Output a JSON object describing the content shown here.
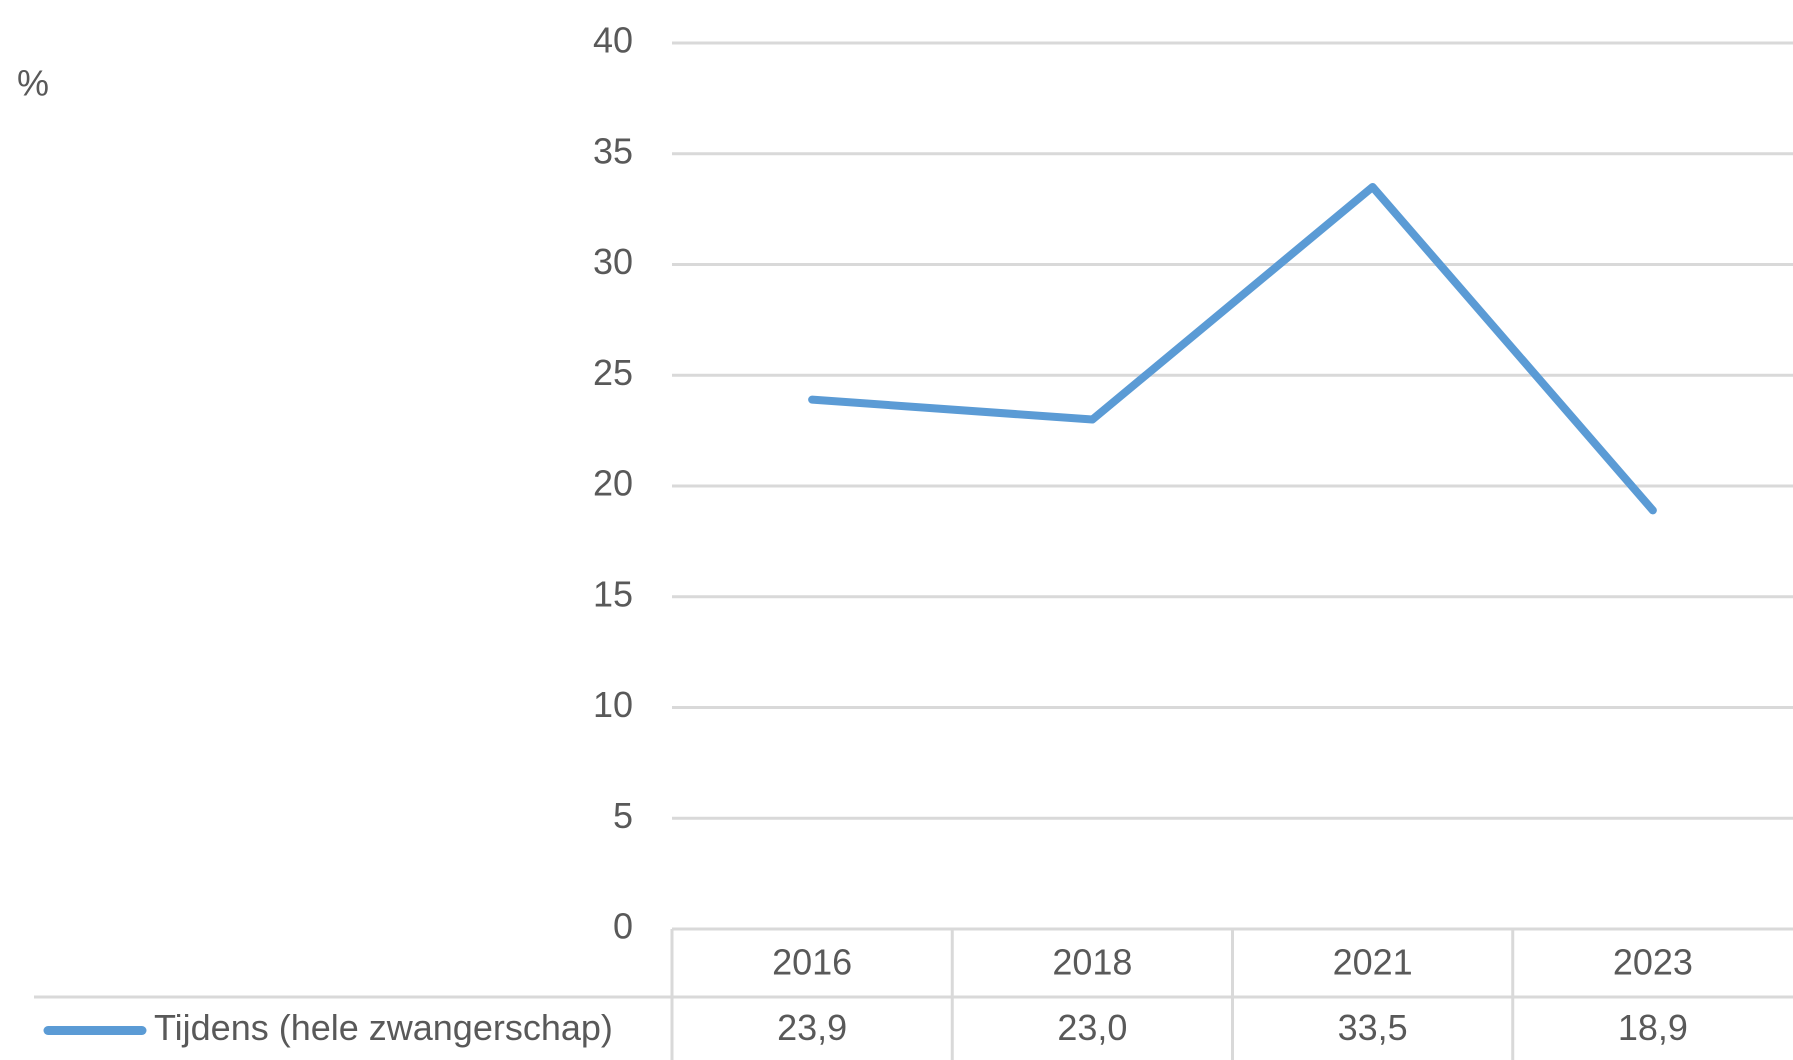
{
  "chart_data": {
    "type": "line",
    "y_label": "%",
    "categories": [
      "2016",
      "2018",
      "2021",
      "2023"
    ],
    "series": [
      {
        "name": "Tijdens (hele zwangerschap)",
        "color": "#5b9bd5",
        "values": [
          23.9,
          23.0,
          33.5,
          18.9
        ],
        "value_labels": [
          "23,9",
          "23,0",
          "33,5",
          "18,9"
        ]
      }
    ],
    "ylim": [
      0,
      40
    ],
    "yticks": [
      0,
      5,
      10,
      15,
      20,
      25,
      30,
      35,
      40
    ],
    "grid": true,
    "data_table": true
  }
}
